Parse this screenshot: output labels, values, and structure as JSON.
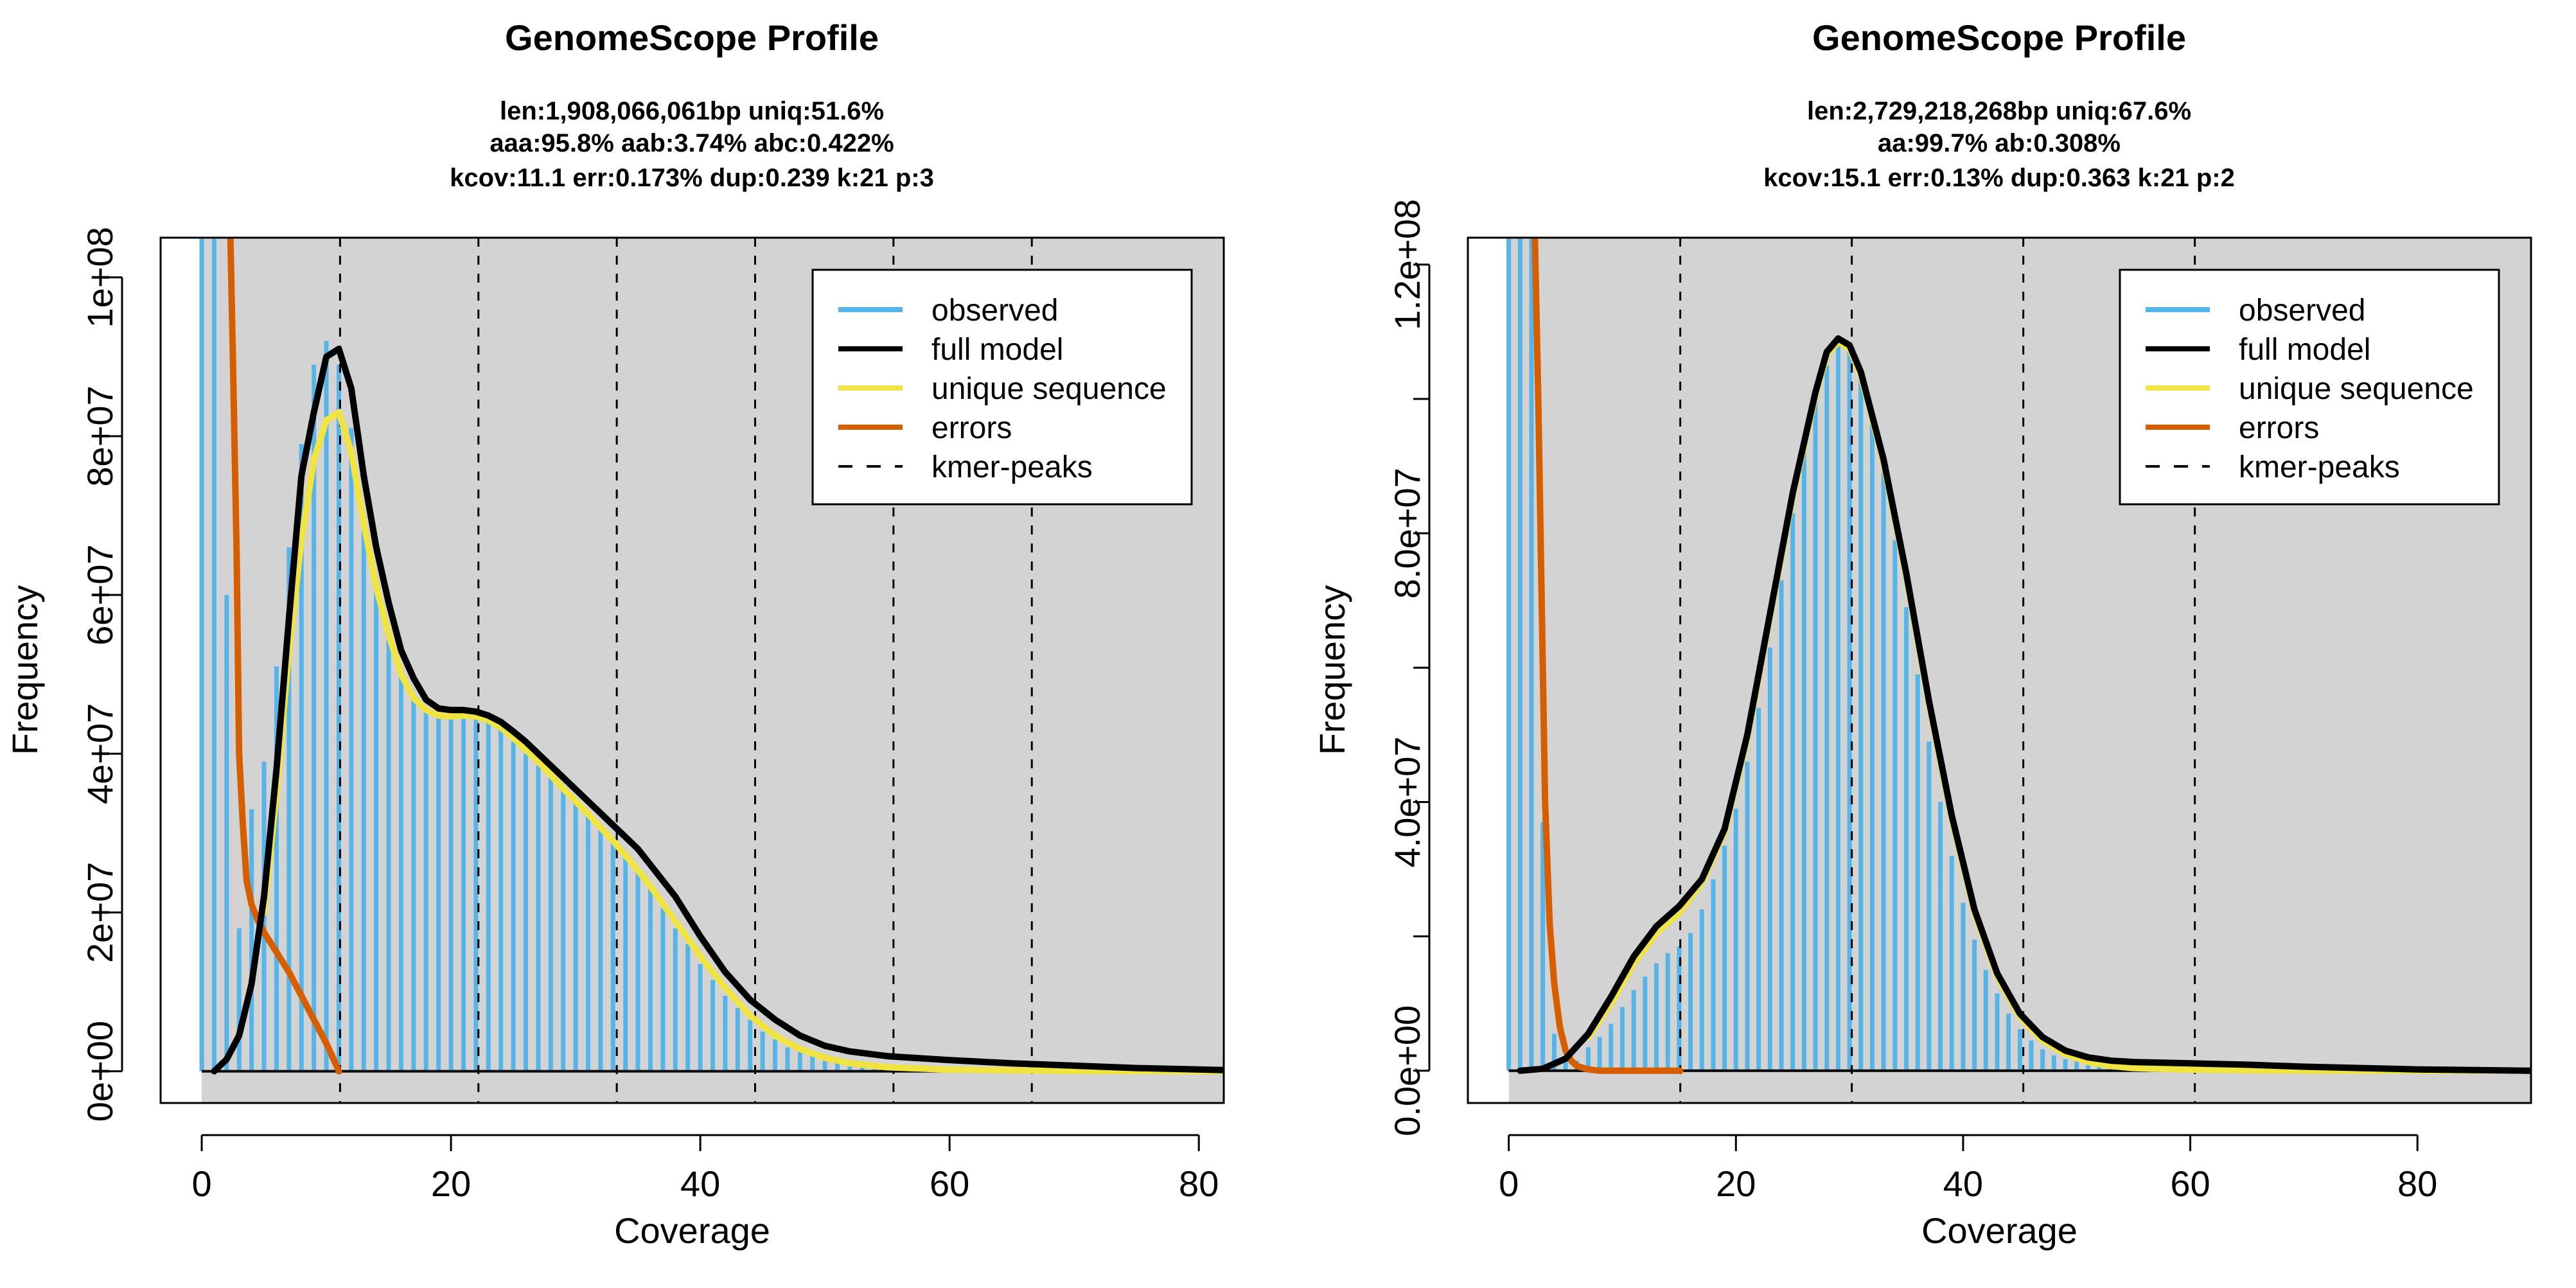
{
  "chart_data": [
    {
      "type": "histogram-line",
      "title": "GenomeScope Profile",
      "subtitle_lines": [
        "len:1,908,066,061bp uniq:51.6%",
        "aaa:95.8% aab:3.74% abc:0.422%",
        "kcov:11.1 err:0.173%  dup:0.239  k:21 p:3"
      ],
      "xlabel": "Coverage",
      "ylabel": "Frequency",
      "xlim": [
        -3.3,
        82
      ],
      "ylim": [
        -4000000,
        105000000
      ],
      "x_ticks": [
        0,
        20,
        40,
        60,
        80
      ],
      "x_tick_labels": [
        "0",
        "20",
        "40",
        "60",
        "80"
      ],
      "y_ticks": [
        0,
        20000000,
        40000000,
        60000000,
        80000000,
        100000000
      ],
      "y_tick_labels": [
        "0e+00",
        "2e+07",
        "4e+07",
        "6e+07",
        "8e+07",
        "1e+08"
      ],
      "grid": false,
      "kmer_peaks": [
        11.1,
        22.2,
        33.3,
        44.4,
        55.5,
        66.6
      ],
      "observed": {
        "x": [
          0,
          1,
          2,
          3,
          4,
          5,
          6,
          7,
          8,
          9,
          10,
          11,
          12,
          13,
          14,
          15,
          16,
          17,
          18,
          19,
          20,
          21,
          22,
          23,
          24,
          25,
          26,
          27,
          28,
          29,
          30,
          31,
          32,
          33,
          34,
          35,
          36,
          37,
          38,
          39,
          40,
          41,
          42,
          43,
          44,
          45,
          46,
          47,
          48,
          49,
          50,
          51,
          52,
          53,
          54,
          55,
          56,
          57,
          58,
          59,
          60,
          61,
          62,
          63,
          64,
          65,
          66,
          67,
          68,
          69,
          70,
          71,
          72,
          73,
          74,
          75,
          76,
          77,
          78,
          79,
          80,
          81,
          82
        ],
        "y": [
          105000000,
          105000000,
          60000000,
          18000000,
          33000000,
          39000000,
          51000000,
          66000000,
          79000000,
          89000000,
          92000000,
          89000000,
          81000000,
          70000000,
          62000000,
          55000000,
          50000000,
          47000000,
          45500000,
          45000000,
          45000000,
          45000000,
          45000000,
          44000000,
          43000000,
          41500000,
          40000000,
          38500000,
          37000000,
          35500000,
          34000000,
          32500000,
          31000000,
          29500000,
          27500000,
          25500000,
          23000000,
          20500000,
          18000000,
          16000000,
          13500000,
          11500000,
          9500000,
          8000000,
          6500000,
          5000000,
          4000000,
          3000000,
          2500000,
          2000000,
          1600000,
          1300000,
          1100000,
          950000,
          850000,
          800000,
          750000,
          700000,
          650000,
          620000,
          600000,
          580000,
          560000,
          540000,
          520000,
          500000,
          480000,
          460000,
          440000,
          420000,
          400000,
          390000,
          380000,
          370000,
          360000,
          350000,
          340000,
          330000,
          320000,
          310000,
          300000,
          290000,
          280000
        ]
      },
      "full_model": {
        "x": [
          1,
          2,
          3,
          4,
          5,
          6,
          7,
          8,
          9,
          10,
          11,
          12,
          13,
          14,
          15,
          16,
          17,
          18,
          19,
          20,
          21,
          22,
          23,
          24,
          25,
          26,
          27,
          28,
          29,
          30,
          31,
          32,
          33,
          34,
          35,
          36,
          37,
          38,
          39,
          40,
          42,
          44,
          46,
          48,
          50,
          52,
          55,
          60,
          65,
          70,
          75,
          82
        ],
        "y": [
          0,
          1500000,
          4500000,
          11000000,
          22000000,
          38000000,
          57000000,
          75000000,
          83000000,
          90000000,
          91000000,
          86000000,
          75000000,
          66000000,
          59000000,
          53000000,
          49500000,
          46800000,
          45700000,
          45500000,
          45500000,
          45300000,
          44800000,
          44000000,
          42800000,
          41500000,
          40000000,
          38500000,
          37000000,
          35500000,
          34000000,
          32500000,
          31000000,
          29500000,
          28000000,
          26000000,
          24000000,
          22000000,
          19500000,
          17000000,
          12500000,
          9000000,
          6500000,
          4500000,
          3200000,
          2500000,
          1900000,
          1400000,
          1000000,
          700000,
          400000,
          150000
        ]
      },
      "unique_sequence": {
        "x": [
          5,
          6,
          7,
          8,
          9,
          10,
          11,
          12,
          13,
          14,
          15,
          16,
          17,
          18,
          19,
          20,
          21,
          22,
          23,
          24,
          25,
          26,
          27,
          28,
          29,
          30,
          31,
          32,
          33,
          34,
          35,
          36,
          37,
          38,
          39,
          40,
          42,
          44,
          46,
          48,
          50,
          52,
          55,
          60,
          65,
          70,
          75,
          82
        ],
        "y": [
          20000000,
          35000000,
          53000000,
          67000000,
          77000000,
          82000000,
          83000000,
          78000000,
          69000000,
          61000000,
          55000000,
          50000000,
          47000000,
          45500000,
          44800000,
          44700000,
          44800000,
          44700000,
          44200000,
          43300000,
          42000000,
          40500000,
          39000000,
          37300000,
          35600000,
          34000000,
          32400000,
          30700000,
          29000000,
          27200000,
          25300000,
          23300000,
          21100000,
          18900000,
          16700000,
          14500000,
          10500000,
          7000000,
          4500000,
          2800000,
          1700000,
          1000000,
          500000,
          200000,
          100000,
          40000,
          15000,
          0
        ]
      },
      "errors": {
        "x": [
          2.3,
          2.5,
          2.8,
          3.0,
          3.3,
          3.6,
          4.0,
          4.5,
          5.0,
          6.0,
          7.0,
          8.0,
          9.0,
          10.0,
          10.5,
          11.0
        ],
        "y": [
          105000000,
          90000000,
          65000000,
          40000000,
          31000000,
          24000000,
          21000000,
          19000000,
          17500000,
          15000000,
          12500000,
          9500000,
          6500000,
          3500000,
          1800000,
          0
        ]
      },
      "legend": {
        "position": "top-right",
        "entries": [
          "observed",
          "full model",
          "unique sequence",
          "errors",
          "kmer-peaks"
        ]
      },
      "colors": {
        "observed": "#56B4E9",
        "full_model": "#000000",
        "unique_sequence": "#F0E442",
        "errors": "#D55E00",
        "background": "#D3D3D3"
      }
    },
    {
      "type": "histogram-line",
      "title": "GenomeScope Profile",
      "subtitle_lines": [
        "len:2,729,218,268bp uniq:67.6%",
        "aa:99.7% ab:0.308%",
        "kcov:15.1 err:0.13%  dup:0.363  k:21 p:2"
      ],
      "xlabel": "Coverage",
      "ylabel": "Frequency",
      "xlim": [
        -3.6,
        90
      ],
      "ylim": [
        -4800000,
        124000000
      ],
      "x_ticks": [
        0,
        20,
        40,
        60,
        80
      ],
      "x_tick_labels": [
        "0",
        "20",
        "40",
        "60",
        "80"
      ],
      "y_ticks": [
        0,
        20000000,
        40000000,
        60000000,
        80000000,
        100000000,
        120000000
      ],
      "y_tick_labels": [
        "0.0e+00",
        "",
        "4.0e+07",
        "",
        "8.0e+07",
        "",
        "1.2e+08"
      ],
      "grid": false,
      "kmer_peaks": [
        15.1,
        30.2,
        45.3,
        60.4
      ],
      "observed": {
        "x": [
          0,
          1,
          2,
          3,
          4,
          5,
          6,
          7,
          8,
          9,
          10,
          11,
          12,
          13,
          14,
          15,
          16,
          17,
          18,
          19,
          20,
          21,
          22,
          23,
          24,
          25,
          26,
          27,
          28,
          29,
          30,
          31,
          32,
          33,
          34,
          35,
          36,
          37,
          38,
          39,
          40,
          41,
          42,
          43,
          44,
          45,
          46,
          47,
          48,
          49,
          50,
          51,
          52,
          53,
          54,
          55,
          56,
          57,
          58,
          59,
          60,
          61,
          62,
          63,
          64,
          65,
          66,
          67,
          68,
          69,
          70,
          71,
          72,
          73,
          74,
          75,
          76,
          77,
          78,
          79,
          80,
          81,
          82,
          83,
          84,
          85,
          86,
          87,
          88,
          89,
          90
        ],
        "y": [
          124000000,
          124000000,
          124000000,
          37000000,
          5500000,
          2000000,
          1500000,
          3500000,
          5000000,
          7000000,
          9500000,
          12000000,
          14000000,
          16000000,
          17500000,
          18500000,
          20500000,
          24000000,
          28500000,
          33500000,
          39000000,
          46000000,
          54000000,
          63000000,
          73000000,
          83000000,
          92000000,
          100000000,
          105000000,
          108000000,
          108000000,
          104000000,
          97000000,
          89000000,
          79000000,
          69000000,
          59000000,
          49000000,
          40000000,
          32000000,
          25000000,
          19500000,
          15000000,
          11500000,
          8500000,
          6200000,
          4500000,
          3200000,
          2300000,
          1700000,
          1400000,
          1250000,
          1150000,
          1100000,
          1050000,
          1000000,
          950000,
          900000,
          850000,
          800000,
          750000,
          700000,
          650000,
          600000,
          550000,
          500000,
          450000,
          400000,
          350000,
          300000,
          250000,
          220000,
          200000,
          180000,
          160000,
          150000,
          140000,
          130000,
          120000,
          110000,
          100000,
          90000,
          80000,
          70000,
          60000,
          50000,
          40000,
          30000,
          20000,
          10000,
          0
        ]
      },
      "full_model": {
        "x": [
          1,
          3,
          5,
          7,
          9,
          11,
          13,
          15,
          17,
          19,
          21,
          23,
          25,
          27,
          28,
          29,
          30,
          31,
          33,
          35,
          37,
          39,
          41,
          43,
          45,
          47,
          49,
          51,
          53,
          55,
          60,
          65,
          70,
          75,
          80,
          85,
          90
        ],
        "y": [
          0,
          300000,
          1800000,
          5500000,
          11000000,
          17000000,
          21500000,
          24500000,
          28500000,
          36000000,
          50000000,
          68000000,
          86000000,
          101000000,
          107000000,
          109000000,
          108000000,
          104000000,
          91000000,
          74000000,
          55000000,
          38000000,
          24000000,
          14500000,
          8500000,
          5000000,
          3000000,
          2000000,
          1500000,
          1300000,
          1100000,
          900000,
          600000,
          400000,
          200000,
          100000,
          0
        ]
      },
      "unique_sequence": {
        "x": [
          7,
          9,
          11,
          13,
          15,
          17,
          19,
          21,
          23,
          25,
          27,
          28,
          29,
          30,
          31,
          33,
          35,
          37,
          39,
          41,
          43,
          45,
          47,
          49,
          51,
          53,
          55,
          60,
          65,
          70,
          75,
          80,
          85,
          90
        ],
        "y": [
          5000000,
          10000000,
          16000000,
          20500000,
          23500000,
          28000000,
          35500000,
          49500000,
          67500000,
          85500000,
          100500000,
          106500000,
          108500000,
          107500000,
          103500000,
          90500000,
          73500000,
          54500000,
          37500000,
          23500000,
          14000000,
          8000000,
          4500000,
          2500000,
          1300000,
          700000,
          400000,
          150000,
          60000,
          20000,
          5000,
          0,
          0,
          0
        ]
      },
      "errors": {
        "x": [
          2.3,
          2.6,
          2.9,
          3.2,
          3.6,
          4.0,
          4.5,
          5.0,
          5.5,
          6.0,
          7.0,
          8.0,
          10.0,
          12.0,
          15.1
        ],
        "y": [
          124000000,
          100000000,
          70000000,
          40000000,
          22000000,
          13000000,
          6500000,
          3000000,
          1500000,
          700000,
          200000,
          0,
          0,
          0,
          0
        ]
      },
      "legend": {
        "position": "top-right",
        "entries": [
          "observed",
          "full model",
          "unique sequence",
          "errors",
          "kmer-peaks"
        ]
      },
      "colors": {
        "observed": "#56B4E9",
        "full_model": "#000000",
        "unique_sequence": "#F0E442",
        "errors": "#D55E00",
        "background": "#D3D3D3"
      }
    }
  ]
}
